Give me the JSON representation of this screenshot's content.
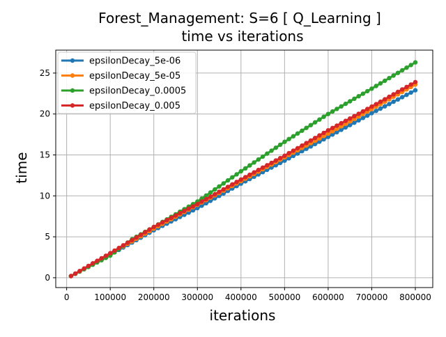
{
  "chart_data": {
    "type": "line",
    "title_line1": "Forest_Management: S=6 [ Q_Learning ]",
    "title_line2": "time vs iterations",
    "xlabel": "iterations",
    "ylabel": "time",
    "xlim": [
      -25000,
      840000
    ],
    "ylim": [
      -1.2,
      27.8
    ],
    "x_ticks": [
      0,
      100000,
      200000,
      300000,
      400000,
      500000,
      600000,
      700000,
      800000
    ],
    "x_tick_labels": [
      "0",
      "100000",
      "200000",
      "300000",
      "400000",
      "500000",
      "600000",
      "700000",
      "800000"
    ],
    "y_ticks": [
      0,
      5,
      10,
      15,
      20,
      25
    ],
    "y_tick_labels": [
      "0",
      "5",
      "10",
      "15",
      "20",
      "25"
    ],
    "grid": true,
    "legend_position": "upper-left",
    "x_range": {
      "start": 10000,
      "end": 800000,
      "step": 10000
    },
    "series": [
      {
        "name": "epsilonDecay_5e-06",
        "color": "#1f77b4",
        "anchors": [
          [
            10000,
            0.2
          ],
          [
            100000,
            2.8
          ],
          [
            200000,
            5.8
          ],
          [
            300000,
            8.5
          ],
          [
            400000,
            11.5
          ],
          [
            500000,
            14.3
          ],
          [
            600000,
            17.2
          ],
          [
            700000,
            20.1
          ],
          [
            800000,
            22.9
          ]
        ]
      },
      {
        "name": "epsilonDecay_5e-05",
        "color": "#ff7f0e",
        "anchors": [
          [
            10000,
            0.2
          ],
          [
            100000,
            2.9
          ],
          [
            200000,
            6.0
          ],
          [
            300000,
            8.9
          ],
          [
            400000,
            11.8
          ],
          [
            500000,
            14.7
          ],
          [
            600000,
            17.6
          ],
          [
            700000,
            20.6
          ],
          [
            800000,
            23.6
          ]
        ]
      },
      {
        "name": "epsilonDecay_0.0005",
        "color": "#2ca02c",
        "anchors": [
          [
            10000,
            0.2
          ],
          [
            100000,
            2.7
          ],
          [
            150000,
            4.7
          ],
          [
            200000,
            6.2
          ],
          [
            300000,
            9.3
          ],
          [
            400000,
            13.0
          ],
          [
            500000,
            16.6
          ],
          [
            600000,
            20.0
          ],
          [
            700000,
            23.1
          ],
          [
            800000,
            26.3
          ]
        ]
      },
      {
        "name": "epsilonDecay_0.005",
        "color": "#d62728",
        "anchors": [
          [
            10000,
            0.2
          ],
          [
            100000,
            3.0
          ],
          [
            200000,
            6.2
          ],
          [
            300000,
            9.0
          ],
          [
            400000,
            12.0
          ],
          [
            500000,
            14.9
          ],
          [
            600000,
            18.0
          ],
          [
            700000,
            20.9
          ],
          [
            800000,
            23.9
          ]
        ]
      }
    ]
  }
}
